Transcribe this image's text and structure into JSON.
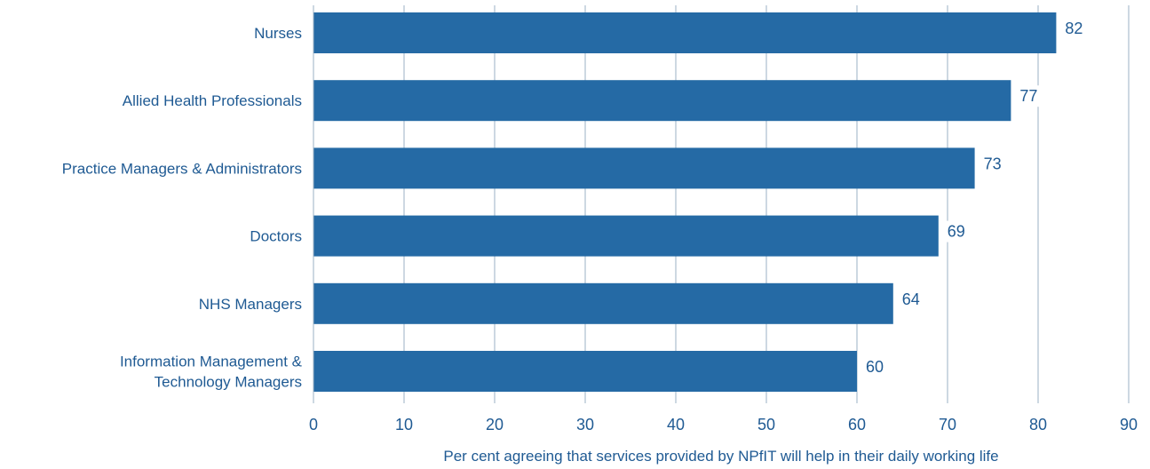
{
  "chart_data": {
    "type": "bar",
    "orientation": "horizontal",
    "title": "",
    "xlabel": "Per cent agreeing that services provided by NPfIT will help in their daily working life",
    "ylabel": "",
    "xlim": [
      0,
      90
    ],
    "ticks": [
      0,
      10,
      20,
      30,
      40,
      50,
      60,
      70,
      80,
      90
    ],
    "grid": true,
    "categories": [
      [
        "Nurses"
      ],
      [
        "Allied Health Professionals"
      ],
      [
        "Practice Managers & Administrators"
      ],
      [
        "Doctors"
      ],
      [
        "NHS Managers"
      ],
      [
        "Information Management &",
        "Technology Managers"
      ]
    ],
    "values": [
      82,
      77,
      73,
      69,
      64,
      60
    ],
    "colors": {
      "bar": "#256aa5",
      "grid": "#9bb0c4",
      "text": "#1f5a93"
    }
  }
}
